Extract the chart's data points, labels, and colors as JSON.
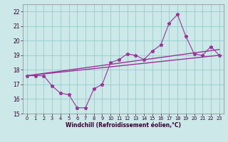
{
  "xlabel": "Windchill (Refroidissement éolien,°C)",
  "bg_color": "#cce8e8",
  "grid_color": "#99cccc",
  "line_color": "#993399",
  "xlim": [
    -0.5,
    23.5
  ],
  "ylim": [
    15,
    22.5
  ],
  "xticks": [
    0,
    1,
    2,
    3,
    4,
    5,
    6,
    7,
    8,
    9,
    10,
    11,
    12,
    13,
    14,
    15,
    16,
    17,
    18,
    19,
    20,
    21,
    22,
    23
  ],
  "yticks": [
    15,
    16,
    17,
    18,
    19,
    20,
    21,
    22
  ],
  "series1_x": [
    0,
    1,
    2,
    3,
    4,
    5,
    6,
    7,
    8,
    9,
    10,
    11,
    12,
    13,
    14,
    15,
    16,
    17,
    18,
    19,
    20,
    21,
    22,
    23
  ],
  "series1_y": [
    17.6,
    17.6,
    17.6,
    16.9,
    16.4,
    16.3,
    15.4,
    15.4,
    16.7,
    17.0,
    18.5,
    18.7,
    19.1,
    19.0,
    18.7,
    19.3,
    19.7,
    21.2,
    21.8,
    20.3,
    19.1,
    19.0,
    19.6,
    19.0
  ],
  "series2_x": [
    0,
    23
  ],
  "series2_y": [
    17.6,
    19.0
  ],
  "series3_x": [
    0,
    23
  ],
  "series3_y": [
    17.6,
    19.4
  ]
}
